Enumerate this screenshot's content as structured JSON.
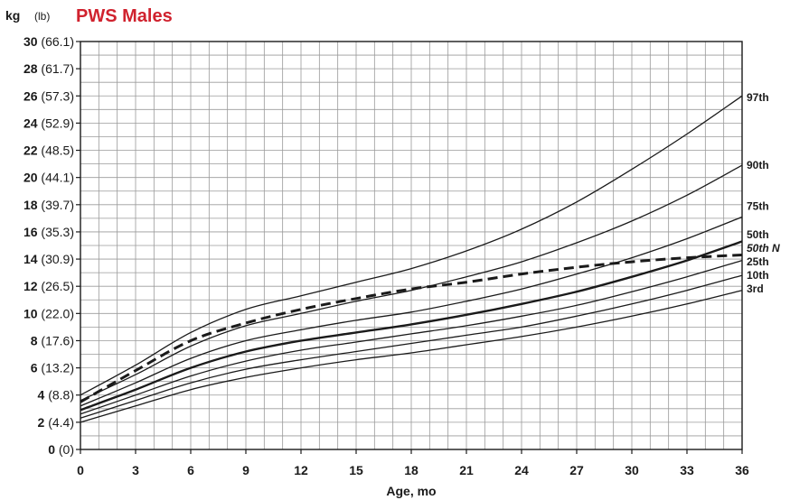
{
  "header": {
    "unit_kg": "kg",
    "unit_lb": "(lb)",
    "title": "PWS Males"
  },
  "colors": {
    "title": "#d0222e",
    "grid": "#9a9a9a",
    "curve": "#1a1a1a",
    "frame": "#1a1a1a"
  },
  "chart_data": {
    "type": "line",
    "title": "PWS Males",
    "xlabel": "Age, mo",
    "ylabel": "kg (lb)",
    "xlim": [
      0,
      36
    ],
    "ylim": [
      0,
      30
    ],
    "grid": true,
    "x_ticks": [
      {
        "value": 0,
        "label": "0"
      },
      {
        "value": 3,
        "label": "3"
      },
      {
        "value": 6,
        "label": "6"
      },
      {
        "value": 9,
        "label": "9"
      },
      {
        "value": 12,
        "label": "12"
      },
      {
        "value": 15,
        "label": "15"
      },
      {
        "value": 18,
        "label": "18"
      },
      {
        "value": 21,
        "label": "21"
      },
      {
        "value": 24,
        "label": "24"
      },
      {
        "value": 27,
        "label": "27"
      },
      {
        "value": 30,
        "label": "30"
      },
      {
        "value": 33,
        "label": "33"
      },
      {
        "value": 36,
        "label": "36"
      }
    ],
    "y_ticks": [
      {
        "value": 0,
        "kg": "0",
        "lb": "(0)"
      },
      {
        "value": 2,
        "kg": "2",
        "lb": "(4.4)"
      },
      {
        "value": 4,
        "kg": "4",
        "lb": "(8.8)"
      },
      {
        "value": 6,
        "kg": "6",
        "lb": "(13.2)"
      },
      {
        "value": 8,
        "kg": "8",
        "lb": "(17.6)"
      },
      {
        "value": 10,
        "kg": "10",
        "lb": "(22.0)"
      },
      {
        "value": 12,
        "kg": "12",
        "lb": "(26.5)"
      },
      {
        "value": 14,
        "kg": "14",
        "lb": "(30.9)"
      },
      {
        "value": 16,
        "kg": "16",
        "lb": "(35.3)"
      },
      {
        "value": 18,
        "kg": "18",
        "lb": "(39.7)"
      },
      {
        "value": 20,
        "kg": "20",
        "lb": "(44.1)"
      },
      {
        "value": 22,
        "kg": "22",
        "lb": "(48.5)"
      },
      {
        "value": 24,
        "kg": "24",
        "lb": "(52.9)"
      },
      {
        "value": 26,
        "kg": "26",
        "lb": "(57.3)"
      },
      {
        "value": 28,
        "kg": "28",
        "lb": "(61.7)"
      },
      {
        "value": 30,
        "kg": "30",
        "lb": "(66.1)"
      }
    ],
    "x": [
      0,
      3,
      6,
      9,
      12,
      15,
      18,
      21,
      24,
      27,
      30,
      33,
      36
    ],
    "series": [
      {
        "name": "97th",
        "values": [
          4.0,
          6.2,
          8.6,
          10.3,
          11.3,
          12.3,
          13.3,
          14.6,
          16.2,
          18.2,
          20.6,
          23.2,
          26.0
        ],
        "dashed": false,
        "bold": false,
        "italic_label": false
      },
      {
        "name": "90th",
        "values": [
          3.6,
          5.5,
          7.6,
          9.1,
          10.0,
          10.9,
          11.7,
          12.7,
          13.8,
          15.2,
          16.8,
          18.7,
          20.9
        ],
        "dashed": false,
        "bold": false,
        "italic_label": false
      },
      {
        "name": "75th",
        "values": [
          3.2,
          4.9,
          6.7,
          8.0,
          8.8,
          9.5,
          10.1,
          10.9,
          11.8,
          12.9,
          14.1,
          15.5,
          17.1
        ],
        "dashed": false,
        "bold": false,
        "italic_label": false
      },
      {
        "name": "50th",
        "values": [
          2.9,
          4.4,
          6.0,
          7.2,
          8.0,
          8.6,
          9.2,
          9.9,
          10.7,
          11.6,
          12.7,
          13.9,
          15.3
        ],
        "dashed": false,
        "bold": true,
        "italic_label": false
      },
      {
        "name": "50th N",
        "values": [
          3.5,
          5.8,
          8.0,
          9.3,
          10.3,
          11.1,
          11.8,
          12.3,
          12.9,
          13.4,
          13.8,
          14.1,
          14.3
        ],
        "dashed": true,
        "bold": true,
        "italic_label": true
      },
      {
        "name": "25th",
        "values": [
          2.6,
          4.0,
          5.4,
          6.5,
          7.3,
          7.9,
          8.5,
          9.1,
          9.8,
          10.6,
          11.6,
          12.7,
          13.9
        ],
        "dashed": false,
        "bold": false,
        "italic_label": false
      },
      {
        "name": "10th",
        "values": [
          2.3,
          3.6,
          4.9,
          5.9,
          6.6,
          7.2,
          7.8,
          8.4,
          9.0,
          9.8,
          10.7,
          11.7,
          12.8
        ],
        "dashed": false,
        "bold": false,
        "italic_label": false
      },
      {
        "name": "3rd",
        "values": [
          2.0,
          3.2,
          4.4,
          5.3,
          6.0,
          6.6,
          7.1,
          7.7,
          8.3,
          9.0,
          9.8,
          10.7,
          11.7
        ],
        "dashed": false,
        "bold": false,
        "italic_label": false
      }
    ],
    "label_y_overrides": {
      "97th": 25.9,
      "90th": 20.9,
      "75th": 17.9,
      "50th": 15.8,
      "50th N": 14.8,
      "25th": 13.8,
      "10th": 12.8,
      "3rd": 11.8
    }
  }
}
